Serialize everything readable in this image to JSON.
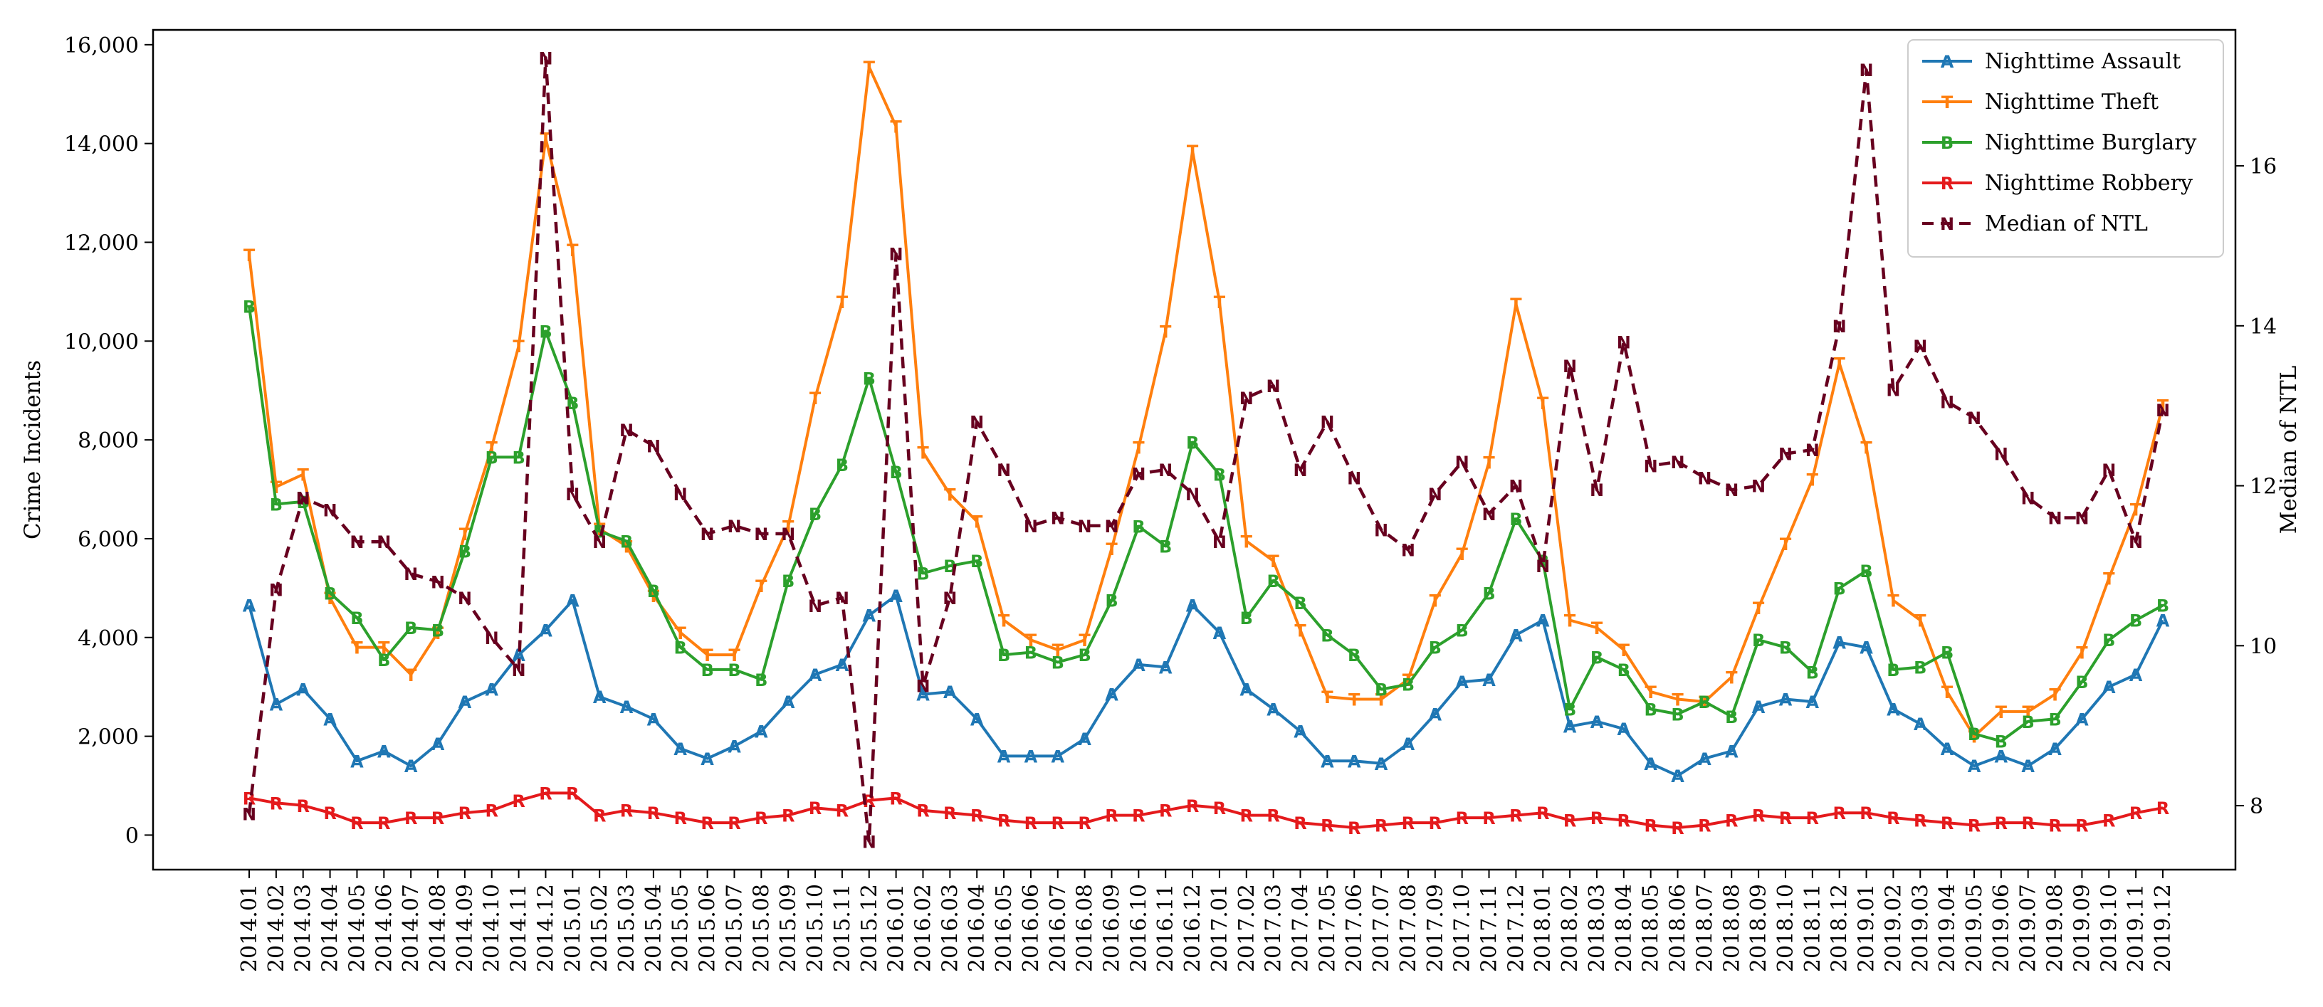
{
  "chart_data": {
    "type": "line",
    "x": [
      "2014.01",
      "2014.02",
      "2014.03",
      "2014.04",
      "2014.05",
      "2014.06",
      "2014.07",
      "2014.08",
      "2014.09",
      "2014.10",
      "2014.11",
      "2014.12",
      "2015.01",
      "2015.02",
      "2015.03",
      "2015.04",
      "2015.05",
      "2015.06",
      "2015.07",
      "2015.08",
      "2015.09",
      "2015.10",
      "2015.11",
      "2015.12",
      "2016.01",
      "2016.02",
      "2016.03",
      "2016.04",
      "2016.05",
      "2016.06",
      "2016.07",
      "2016.08",
      "2016.09",
      "2016.10",
      "2016.11",
      "2016.12",
      "2017.01",
      "2017.02",
      "2017.03",
      "2017.04",
      "2017.05",
      "2017.06",
      "2017.07",
      "2017.08",
      "2017.09",
      "2017.10",
      "2017.11",
      "2017.12",
      "2018.01",
      "2018.02",
      "2018.03",
      "2018.04",
      "2018.05",
      "2018.06",
      "2018.07",
      "2018.08",
      "2018.09",
      "2018.10",
      "2018.11",
      "2018.12",
      "2019.01",
      "2019.02",
      "2019.03",
      "2019.04",
      "2019.05",
      "2019.06",
      "2019.07",
      "2019.08",
      "2019.09",
      "2019.10",
      "2019.11",
      "2019.12"
    ],
    "series": [
      {
        "name": "Nighttime Assault",
        "axis": "left",
        "color": "#1f77b4",
        "marker": "A",
        "dashed": false,
        "values": [
          4650,
          2650,
          2950,
          2350,
          1500,
          1700,
          1400,
          1850,
          2700,
          2950,
          3650,
          4150,
          4750,
          2800,
          2600,
          2350,
          1750,
          1550,
          1800,
          2100,
          2700,
          3250,
          3450,
          4450,
          4850,
          2850,
          2900,
          2350,
          1600,
          1600,
          1600,
          1950,
          2850,
          3450,
          3400,
          4650,
          4100,
          2950,
          2550,
          2100,
          1500,
          1500,
          1450,
          1850,
          2450,
          3100,
          3150,
          4050,
          4350,
          2200,
          2300,
          2150,
          1450,
          1200,
          1550,
          1700,
          2600,
          2750,
          2700,
          3900,
          3800,
          2550,
          2250,
          1750,
          1400,
          1600,
          1400,
          1750,
          2350,
          3000,
          3250,
          4350
        ]
      },
      {
        "name": "Nighttime Theft",
        "axis": "left",
        "color": "#ff7f0e",
        "marker": "T",
        "dashed": false,
        "values": [
          11750,
          7050,
          7300,
          4800,
          3800,
          3800,
          3250,
          4100,
          6100,
          7850,
          9900,
          14100,
          11850,
          6200,
          5850,
          4850,
          4100,
          3650,
          3650,
          5050,
          6250,
          8850,
          10800,
          15550,
          14350,
          7750,
          6900,
          6350,
          4350,
          3950,
          3750,
          3950,
          5800,
          7850,
          10200,
          13850,
          10800,
          5950,
          5550,
          4150,
          2800,
          2750,
          2750,
          3150,
          4750,
          5700,
          7550,
          10750,
          8750,
          4350,
          4200,
          3750,
          2900,
          2750,
          2700,
          3200,
          4600,
          5900,
          7200,
          9550,
          7850,
          4750,
          4350,
          2900,
          2000,
          2500,
          2500,
          2850,
          3700,
          5200,
          6600,
          8700
        ]
      },
      {
        "name": "Nighttime Burglary",
        "axis": "left",
        "color": "#2ca02c",
        "marker": "B",
        "dashed": false,
        "values": [
          10700,
          6700,
          6750,
          4900,
          4400,
          3550,
          4200,
          4150,
          5750,
          7650,
          7650,
          10200,
          8750,
          6150,
          5950,
          4950,
          3800,
          3350,
          3350,
          3150,
          5150,
          6500,
          7500,
          9250,
          7350,
          5300,
          5450,
          5550,
          3650,
          3700,
          3500,
          3650,
          4750,
          6250,
          5850,
          7950,
          7300,
          4400,
          5150,
          4700,
          4050,
          3650,
          2950,
          3050,
          3800,
          4150,
          4900,
          6400,
          5550,
          2550,
          3600,
          3350,
          2550,
          2450,
          2700,
          2400,
          3950,
          3800,
          3300,
          5000,
          5350,
          3350,
          3400,
          3700,
          2050,
          1900,
          2300,
          2350,
          3100,
          3950,
          4350,
          4650
        ]
      },
      {
        "name": "Nighttime Robbery",
        "axis": "left",
        "color": "#e41a1c",
        "marker": "R",
        "dashed": false,
        "values": [
          750,
          650,
          600,
          450,
          250,
          250,
          350,
          350,
          450,
          500,
          700,
          850,
          850,
          400,
          500,
          450,
          350,
          250,
          250,
          350,
          400,
          550,
          500,
          700,
          750,
          500,
          450,
          400,
          300,
          250,
          250,
          250,
          400,
          400,
          500,
          600,
          550,
          400,
          400,
          250,
          200,
          150,
          200,
          250,
          250,
          350,
          350,
          400,
          450,
          300,
          350,
          300,
          200,
          150,
          200,
          300,
          400,
          350,
          350,
          450,
          450,
          350,
          300,
          250,
          200,
          250,
          250,
          200,
          200,
          300,
          450,
          550
        ]
      },
      {
        "name": "Median of NTL",
        "axis": "right",
        "color": "#67001f",
        "marker": "N",
        "dashed": true,
        "values": [
          7.9,
          10.7,
          11.85,
          11.7,
          11.3,
          11.3,
          10.9,
          10.8,
          10.6,
          10.1,
          9.7,
          17.35,
          11.9,
          11.3,
          12.7,
          12.5,
          11.9,
          11.4,
          11.5,
          11.4,
          11.4,
          10.5,
          10.6,
          7.55,
          14.9,
          9.5,
          10.6,
          12.8,
          12.2,
          11.5,
          11.6,
          11.5,
          11.5,
          12.15,
          12.2,
          11.9,
          11.3,
          13.1,
          13.25,
          12.2,
          12.8,
          12.1,
          11.45,
          11.2,
          11.9,
          12.3,
          11.65,
          12.0,
          11.0,
          13.5,
          11.95,
          13.8,
          12.25,
          12.3,
          12.1,
          11.95,
          12.0,
          12.4,
          12.45,
          14.0,
          17.2,
          13.2,
          13.75,
          13.05,
          12.85,
          12.4,
          11.85,
          11.6,
          11.6,
          12.2,
          11.3,
          12.95
        ]
      }
    ],
    "ylabel": "Crime Incidents",
    "ylabel_right": "Median of NTL",
    "ylim": [
      -700,
      16300
    ],
    "ylim_right": [
      7.2,
      17.7
    ],
    "yticks": [
      0,
      2000,
      4000,
      6000,
      8000,
      10000,
      12000,
      14000,
      16000
    ],
    "ytick_labels": [
      "0",
      "2,000",
      "4,000",
      "6,000",
      "8,000",
      "10,000",
      "12,000",
      "14,000",
      "16,000"
    ],
    "yticks_right": [
      8,
      10,
      12,
      14,
      16
    ],
    "ytick_labels_right": [
      "8",
      "10",
      "12",
      "14",
      "16"
    ],
    "legend_position": "top-right",
    "grid": false
  }
}
